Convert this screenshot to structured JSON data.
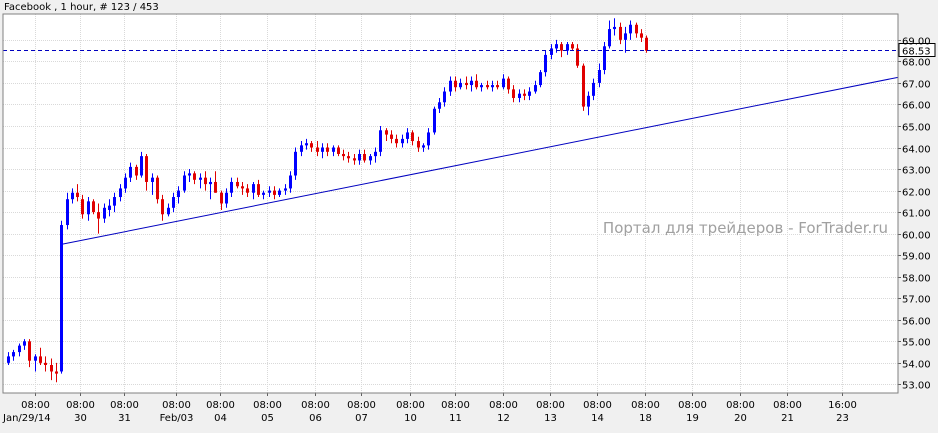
{
  "header": {
    "title": "Facebook , 1 hour, # 123 / 453"
  },
  "watermark": "Портал для трейдеров - ForTrader.ru",
  "colors": {
    "background": "#ffffff",
    "grid": "#d9d9d9",
    "bull": "#0000ff",
    "bear": "#e00000",
    "trendline": "#0000c0",
    "price_line": "#0000c0",
    "watermark": "#a0a0a0"
  },
  "chart_data": {
    "type": "candlestick",
    "symbol": "Facebook",
    "timeframe": "1 hour",
    "ylim": [
      52.6,
      70.2
    ],
    "grid": true,
    "y_ticks": [
      "53.00",
      "54.00",
      "55.00",
      "56.00",
      "57.00",
      "58.00",
      "59.00",
      "60.00",
      "61.00",
      "62.00",
      "63.00",
      "64.00",
      "65.00",
      "66.00",
      "67.00",
      "68.00",
      "69.00"
    ],
    "current_price": "68.53",
    "x_ticks": [
      {
        "time": "08:00",
        "date": "Jan/29/14"
      },
      {
        "time": "08:00",
        "date": "30"
      },
      {
        "time": "08:00",
        "date": "31"
      },
      {
        "time": "08:00",
        "date": "Feb/03"
      },
      {
        "time": "08:00",
        "date": "04"
      },
      {
        "time": "08:00",
        "date": "05"
      },
      {
        "time": "08:00",
        "date": "06"
      },
      {
        "time": "08:00",
        "date": "07"
      },
      {
        "time": "08:00",
        "date": "10"
      },
      {
        "time": "08:00",
        "date": "11"
      },
      {
        "time": "08:00",
        "date": "12"
      },
      {
        "time": "08:00",
        "date": "13"
      },
      {
        "time": "08:00",
        "date": "14"
      },
      {
        "time": "08:00",
        "date": "18"
      },
      {
        "time": "08:00",
        "date": "19"
      },
      {
        "time": "08:00",
        "date": "20"
      },
      {
        "time": "08:00",
        "date": "21"
      },
      {
        "time": "16:00",
        "date": "23"
      }
    ],
    "candles": [
      {
        "o": 54.0,
        "h": 54.5,
        "l": 53.9,
        "c": 54.3
      },
      {
        "o": 54.3,
        "h": 54.6,
        "l": 54.1,
        "c": 54.5
      },
      {
        "o": 54.5,
        "h": 54.9,
        "l": 54.3,
        "c": 54.8
      },
      {
        "o": 54.8,
        "h": 55.1,
        "l": 54.6,
        "c": 55.0
      },
      {
        "o": 55.0,
        "h": 55.1,
        "l": 53.8,
        "c": 54.1
      },
      {
        "o": 54.1,
        "h": 54.4,
        "l": 53.6,
        "c": 54.3
      },
      {
        "o": 54.3,
        "h": 54.7,
        "l": 53.9,
        "c": 54.0
      },
      {
        "o": 54.0,
        "h": 54.3,
        "l": 53.6,
        "c": 53.9
      },
      {
        "o": 53.9,
        "h": 54.2,
        "l": 53.2,
        "c": 53.6
      },
      {
        "o": 53.6,
        "h": 54.0,
        "l": 53.1,
        "c": 53.5
      },
      {
        "o": 53.6,
        "h": 60.6,
        "l": 53.5,
        "c": 60.4
      },
      {
        "o": 60.4,
        "h": 61.9,
        "l": 60.2,
        "c": 61.6
      },
      {
        "o": 61.6,
        "h": 62.1,
        "l": 61.4,
        "c": 61.9
      },
      {
        "o": 61.9,
        "h": 62.3,
        "l": 61.5,
        "c": 61.7
      },
      {
        "o": 61.6,
        "h": 61.8,
        "l": 60.7,
        "c": 60.9
      },
      {
        "o": 60.9,
        "h": 61.7,
        "l": 60.6,
        "c": 61.5
      },
      {
        "o": 61.5,
        "h": 61.6,
        "l": 60.9,
        "c": 61.0
      },
      {
        "o": 61.0,
        "h": 61.4,
        "l": 60.0,
        "c": 60.7
      },
      {
        "o": 60.7,
        "h": 61.4,
        "l": 60.5,
        "c": 61.2
      },
      {
        "o": 61.1,
        "h": 61.6,
        "l": 60.8,
        "c": 61.3
      },
      {
        "o": 61.3,
        "h": 61.9,
        "l": 61.0,
        "c": 61.7
      },
      {
        "o": 61.7,
        "h": 62.3,
        "l": 61.5,
        "c": 62.1
      },
      {
        "o": 62.1,
        "h": 62.8,
        "l": 61.9,
        "c": 62.6
      },
      {
        "o": 62.6,
        "h": 63.3,
        "l": 62.4,
        "c": 63.1
      },
      {
        "o": 63.1,
        "h": 63.2,
        "l": 62.5,
        "c": 62.7
      },
      {
        "o": 62.7,
        "h": 63.8,
        "l": 62.6,
        "c": 63.6
      },
      {
        "o": 63.6,
        "h": 63.7,
        "l": 62.0,
        "c": 62.4
      },
      {
        "o": 62.4,
        "h": 62.8,
        "l": 61.8,
        "c": 62.6
      },
      {
        "o": 62.6,
        "h": 62.7,
        "l": 61.4,
        "c": 61.6
      },
      {
        "o": 61.6,
        "h": 61.8,
        "l": 60.6,
        "c": 60.9
      },
      {
        "o": 60.9,
        "h": 61.4,
        "l": 60.8,
        "c": 61.2
      },
      {
        "o": 61.2,
        "h": 61.9,
        "l": 61.0,
        "c": 61.7
      },
      {
        "o": 61.7,
        "h": 62.2,
        "l": 61.4,
        "c": 62.0
      },
      {
        "o": 62.0,
        "h": 62.9,
        "l": 61.9,
        "c": 62.7
      },
      {
        "o": 62.7,
        "h": 63.0,
        "l": 62.4,
        "c": 62.8
      },
      {
        "o": 62.8,
        "h": 62.9,
        "l": 62.3,
        "c": 62.5
      },
      {
        "o": 62.5,
        "h": 62.8,
        "l": 62.1,
        "c": 62.6
      },
      {
        "o": 62.6,
        "h": 62.9,
        "l": 62.0,
        "c": 62.3
      },
      {
        "o": 62.3,
        "h": 62.6,
        "l": 61.6,
        "c": 62.4
      },
      {
        "o": 62.4,
        "h": 62.9,
        "l": 61.9,
        "c": 61.9
      },
      {
        "o": 61.9,
        "h": 62.0,
        "l": 61.1,
        "c": 61.4
      },
      {
        "o": 61.4,
        "h": 62.1,
        "l": 61.2,
        "c": 61.9
      },
      {
        "o": 61.9,
        "h": 62.6,
        "l": 61.7,
        "c": 62.4
      },
      {
        "o": 62.4,
        "h": 62.6,
        "l": 62.1,
        "c": 62.2
      },
      {
        "o": 62.2,
        "h": 62.4,
        "l": 61.8,
        "c": 62.1
      },
      {
        "o": 62.1,
        "h": 62.3,
        "l": 61.7,
        "c": 61.9
      },
      {
        "o": 61.9,
        "h": 62.4,
        "l": 61.6,
        "c": 62.3
      },
      {
        "o": 62.3,
        "h": 62.5,
        "l": 61.7,
        "c": 61.8
      },
      {
        "o": 61.8,
        "h": 62.0,
        "l": 61.6,
        "c": 61.9
      },
      {
        "o": 61.9,
        "h": 62.2,
        "l": 61.7,
        "c": 62.0
      },
      {
        "o": 62.0,
        "h": 62.2,
        "l": 61.6,
        "c": 61.8
      },
      {
        "o": 61.8,
        "h": 62.1,
        "l": 61.7,
        "c": 62.0
      },
      {
        "o": 62.0,
        "h": 62.3,
        "l": 61.8,
        "c": 62.1
      },
      {
        "o": 62.1,
        "h": 62.9,
        "l": 61.9,
        "c": 62.7
      },
      {
        "o": 62.7,
        "h": 64.0,
        "l": 62.5,
        "c": 63.8
      },
      {
        "o": 63.8,
        "h": 64.3,
        "l": 63.6,
        "c": 64.1
      },
      {
        "o": 64.1,
        "h": 64.4,
        "l": 63.9,
        "c": 64.2
      },
      {
        "o": 64.2,
        "h": 64.3,
        "l": 63.8,
        "c": 64.0
      },
      {
        "o": 64.0,
        "h": 64.3,
        "l": 63.6,
        "c": 63.8
      },
      {
        "o": 63.8,
        "h": 64.2,
        "l": 63.5,
        "c": 64.0
      },
      {
        "o": 64.0,
        "h": 64.2,
        "l": 63.6,
        "c": 63.8
      },
      {
        "o": 63.8,
        "h": 64.1,
        "l": 63.6,
        "c": 64.0
      },
      {
        "o": 64.0,
        "h": 64.1,
        "l": 63.6,
        "c": 63.7
      },
      {
        "o": 63.7,
        "h": 63.9,
        "l": 63.4,
        "c": 63.6
      },
      {
        "o": 63.6,
        "h": 63.8,
        "l": 63.3,
        "c": 63.5
      },
      {
        "o": 63.5,
        "h": 63.7,
        "l": 63.2,
        "c": 63.4
      },
      {
        "o": 63.4,
        "h": 63.9,
        "l": 63.2,
        "c": 63.7
      },
      {
        "o": 63.7,
        "h": 63.9,
        "l": 63.3,
        "c": 63.4
      },
      {
        "o": 63.4,
        "h": 63.7,
        "l": 63.2,
        "c": 63.6
      },
      {
        "o": 63.6,
        "h": 64.0,
        "l": 63.3,
        "c": 63.8
      },
      {
        "o": 63.8,
        "h": 65.0,
        "l": 63.6,
        "c": 64.8
      },
      {
        "o": 64.8,
        "h": 64.9,
        "l": 64.3,
        "c": 64.6
      },
      {
        "o": 64.6,
        "h": 64.8,
        "l": 64.2,
        "c": 64.4
      },
      {
        "o": 64.4,
        "h": 64.6,
        "l": 64.0,
        "c": 64.2
      },
      {
        "o": 64.2,
        "h": 64.6,
        "l": 64.0,
        "c": 64.4
      },
      {
        "o": 64.4,
        "h": 64.9,
        "l": 64.2,
        "c": 64.7
      },
      {
        "o": 64.7,
        "h": 64.8,
        "l": 64.1,
        "c": 64.3
      },
      {
        "o": 64.3,
        "h": 64.5,
        "l": 63.8,
        "c": 64.0
      },
      {
        "o": 64.0,
        "h": 64.2,
        "l": 63.8,
        "c": 64.1
      },
      {
        "o": 64.1,
        "h": 64.9,
        "l": 63.9,
        "c": 64.7
      },
      {
        "o": 64.7,
        "h": 65.9,
        "l": 64.6,
        "c": 65.8
      },
      {
        "o": 65.8,
        "h": 66.3,
        "l": 65.6,
        "c": 66.1
      },
      {
        "o": 66.1,
        "h": 66.8,
        "l": 65.9,
        "c": 66.6
      },
      {
        "o": 66.6,
        "h": 67.3,
        "l": 66.4,
        "c": 67.1
      },
      {
        "o": 67.1,
        "h": 67.3,
        "l": 66.6,
        "c": 66.8
      },
      {
        "o": 66.8,
        "h": 67.2,
        "l": 66.7,
        "c": 67.0
      },
      {
        "o": 67.0,
        "h": 67.3,
        "l": 66.7,
        "c": 66.9
      },
      {
        "o": 66.9,
        "h": 67.3,
        "l": 66.6,
        "c": 67.1
      },
      {
        "o": 67.1,
        "h": 67.4,
        "l": 66.7,
        "c": 66.8
      },
      {
        "o": 66.8,
        "h": 67.0,
        "l": 66.6,
        "c": 66.9
      },
      {
        "o": 66.9,
        "h": 67.1,
        "l": 66.7,
        "c": 66.8
      },
      {
        "o": 66.8,
        "h": 67.1,
        "l": 66.6,
        "c": 66.9
      },
      {
        "o": 66.9,
        "h": 67.1,
        "l": 66.7,
        "c": 66.8
      },
      {
        "o": 66.8,
        "h": 67.4,
        "l": 66.7,
        "c": 67.2
      },
      {
        "o": 67.2,
        "h": 67.3,
        "l": 66.5,
        "c": 66.7
      },
      {
        "o": 66.7,
        "h": 66.9,
        "l": 66.1,
        "c": 66.3
      },
      {
        "o": 66.3,
        "h": 66.7,
        "l": 66.1,
        "c": 66.5
      },
      {
        "o": 66.5,
        "h": 66.7,
        "l": 66.2,
        "c": 66.4
      },
      {
        "o": 66.4,
        "h": 66.8,
        "l": 66.2,
        "c": 66.6
      },
      {
        "o": 66.6,
        "h": 67.1,
        "l": 66.5,
        "c": 66.9
      },
      {
        "o": 66.9,
        "h": 67.6,
        "l": 66.8,
        "c": 67.5
      },
      {
        "o": 67.5,
        "h": 68.5,
        "l": 67.3,
        "c": 68.3
      },
      {
        "o": 68.3,
        "h": 68.8,
        "l": 68.1,
        "c": 68.6
      },
      {
        "o": 68.6,
        "h": 69.0,
        "l": 68.4,
        "c": 68.8
      },
      {
        "o": 68.8,
        "h": 68.9,
        "l": 68.2,
        "c": 68.5
      },
      {
        "o": 68.5,
        "h": 68.9,
        "l": 68.3,
        "c": 68.8
      },
      {
        "o": 68.8,
        "h": 68.9,
        "l": 68.5,
        "c": 68.6
      },
      {
        "o": 68.6,
        "h": 68.8,
        "l": 67.7,
        "c": 67.8
      },
      {
        "o": 67.8,
        "h": 67.9,
        "l": 65.7,
        "c": 65.9
      },
      {
        "o": 65.9,
        "h": 66.6,
        "l": 65.5,
        "c": 66.4
      },
      {
        "o": 66.4,
        "h": 67.2,
        "l": 66.2,
        "c": 67.0
      },
      {
        "o": 67.0,
        "h": 67.9,
        "l": 66.8,
        "c": 67.6
      },
      {
        "o": 67.6,
        "h": 68.9,
        "l": 67.4,
        "c": 68.7
      },
      {
        "o": 68.7,
        "h": 69.9,
        "l": 68.6,
        "c": 69.5
      },
      {
        "o": 69.5,
        "h": 70.0,
        "l": 69.2,
        "c": 69.6
      },
      {
        "o": 69.6,
        "h": 69.8,
        "l": 68.8,
        "c": 69.0
      },
      {
        "o": 69.0,
        "h": 69.6,
        "l": 68.4,
        "c": 69.3
      },
      {
        "o": 69.3,
        "h": 69.9,
        "l": 69.0,
        "c": 69.7
      },
      {
        "o": 69.7,
        "h": 69.8,
        "l": 69.1,
        "c": 69.3
      },
      {
        "o": 69.3,
        "h": 69.5,
        "l": 68.9,
        "c": 69.1
      },
      {
        "o": 69.1,
        "h": 69.2,
        "l": 68.4,
        "c": 68.5
      }
    ],
    "trendline": {
      "from": {
        "candle": 10,
        "price": 59.5
      },
      "to": {
        "candle": 158,
        "price": 66.8
      }
    }
  }
}
